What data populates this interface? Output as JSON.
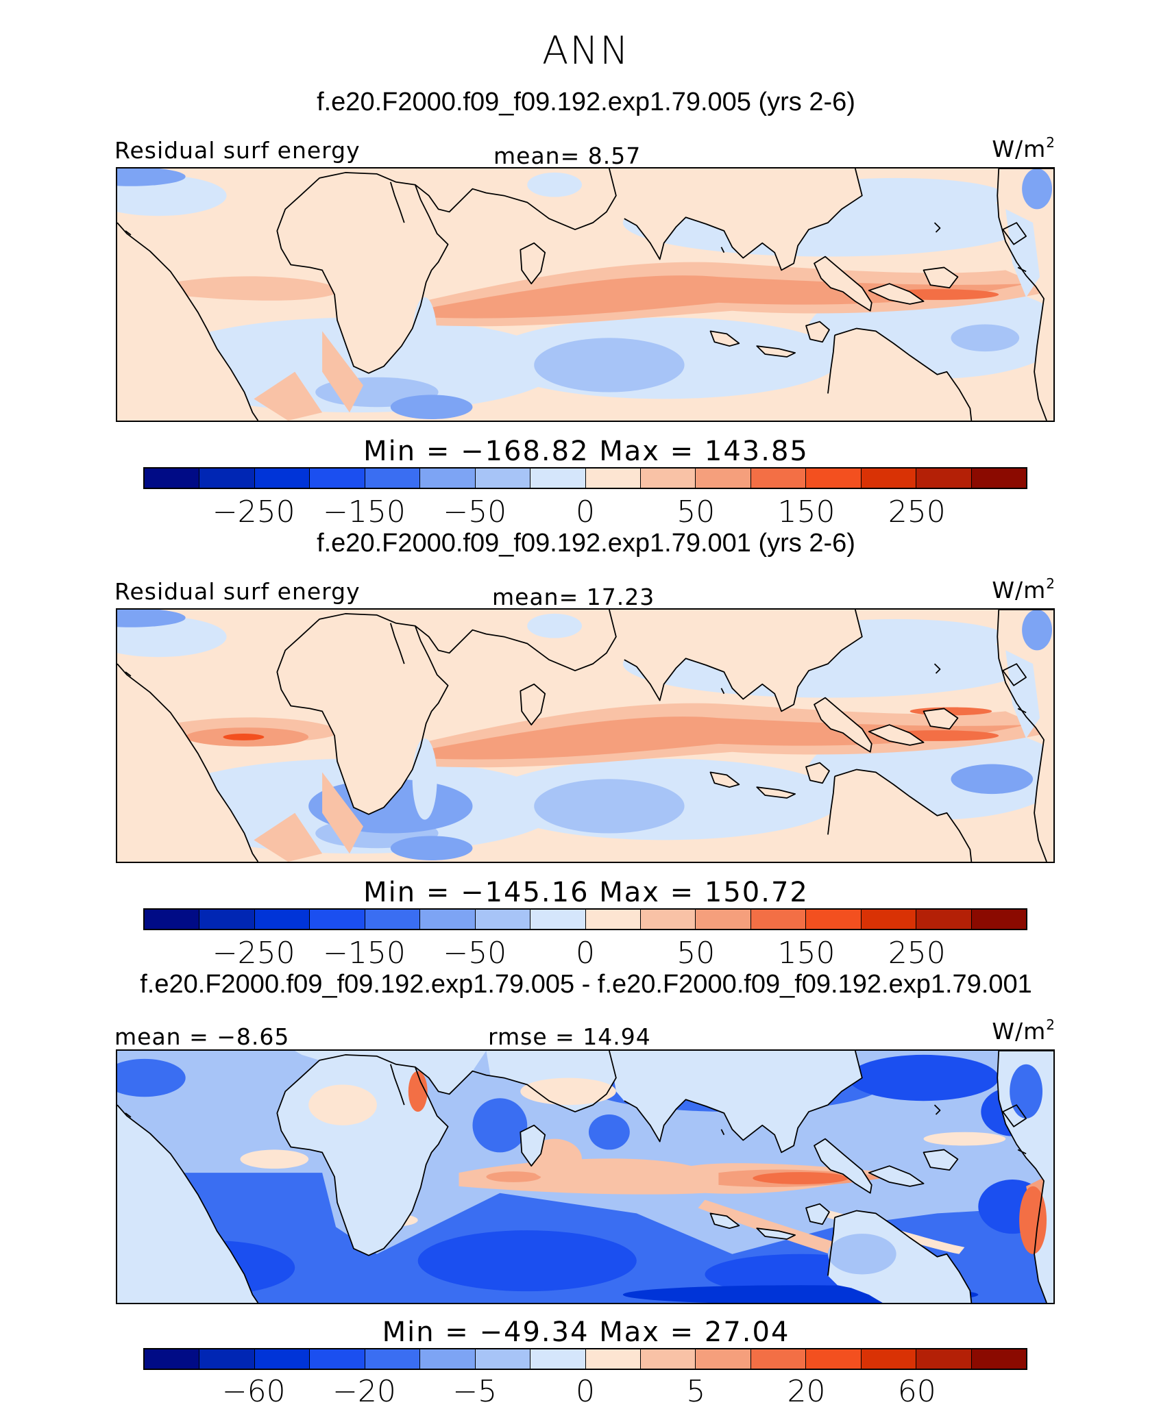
{
  "title": "ANN",
  "colorbar": {
    "colors": [
      "#000b86",
      "#0026b4",
      "#0034d8",
      "#1b4ff0",
      "#3a6ef2",
      "#7da4f4",
      "#a7c4f7",
      "#d5e6fb",
      "#fde5d2",
      "#f9c2a6",
      "#f59f7c",
      "#f36f45",
      "#f3501f",
      "#d93205",
      "#b42006",
      "#8b0a00"
    ]
  },
  "panels": [
    {
      "case_title": "f.e20.F2000.f09_f09.192.exp1.79.005 (yrs 2-6)",
      "left_label": "Residual surf energy",
      "center_label": "mean=   8.57",
      "units": "W/m",
      "units_sup": "2",
      "minmax": "Min  =  −168.82  Max  =  143.85",
      "ticks": [
        "−250",
        "−150",
        "−50",
        "0",
        "50",
        "150",
        "250"
      ],
      "variant": "abs1"
    },
    {
      "case_title": "f.e20.F2000.f09_f09.192.exp1.79.001 (yrs 2-6)",
      "left_label": "Residual surf energy",
      "center_label": "mean=  17.23",
      "units": "W/m",
      "units_sup": "2",
      "minmax": "Min  =  −145.16  Max  =  150.72",
      "ticks": [
        "−250",
        "−150",
        "−50",
        "0",
        "50",
        "150",
        "250"
      ],
      "variant": "abs2"
    },
    {
      "case_title": "f.e20.F2000.f09_f09.192.exp1.79.005 - f.e20.F2000.f09_f09.192.exp1.79.001",
      "left_label": "mean  =  −8.65",
      "center_label": "rmse  =   14.94",
      "units": "W/m",
      "units_sup": "2",
      "minmax": "Min  =  −49.34  Max  =   27.04",
      "ticks": [
        "−60",
        "−20",
        "−5",
        "0",
        "5",
        "20",
        "60"
      ],
      "variant": "diff"
    }
  ]
}
